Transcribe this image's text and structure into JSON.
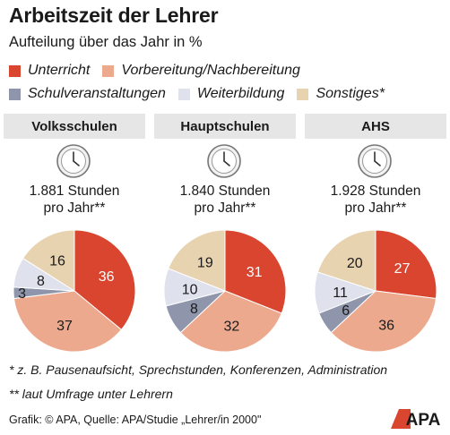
{
  "title": "Arbeitszeit der Lehrer",
  "subtitle": "Aufteilung über das Jahr in %",
  "legend": [
    {
      "label": "Unterricht",
      "color": "#d9452e"
    },
    {
      "label": "Vorbereitung/Nachbereitung",
      "color": "#eda98e"
    },
    {
      "label": "Schulveranstaltungen",
      "color": "#8f96ab"
    },
    {
      "label": "Weiterbildung",
      "color": "#dfe2ec"
    },
    {
      "label": "Sonstiges*",
      "color": "#e8d3b1"
    }
  ],
  "chart_data": [
    {
      "type": "pie",
      "title": "Volksschulen",
      "subtitle": "1.881 Stunden pro Jahr**",
      "hours_line1": "1.881 Stunden",
      "hours_line2": "pro Jahr**",
      "categories": [
        "Unterricht",
        "Vorbereitung/Nachbereitung",
        "Schulveranstaltungen",
        "Weiterbildung",
        "Sonstiges*"
      ],
      "values": [
        36,
        37,
        3,
        8,
        16
      ]
    },
    {
      "type": "pie",
      "title": "Hauptschulen",
      "subtitle": "1.840 Stunden pro Jahr**",
      "hours_line1": "1.840 Stunden",
      "hours_line2": "pro Jahr**",
      "categories": [
        "Unterricht",
        "Vorbereitung/Nachbereitung",
        "Schulveranstaltungen",
        "Weiterbildung",
        "Sonstiges*"
      ],
      "values": [
        31,
        32,
        8,
        10,
        19
      ]
    },
    {
      "type": "pie",
      "title": "AHS",
      "subtitle": "1.928 Stunden pro Jahr**",
      "hours_line1": "1.928 Stunden",
      "hours_line2": "pro Jahr**",
      "categories": [
        "Unterricht",
        "Vorbereitung/Nachbereitung",
        "Schulveranstaltungen",
        "Weiterbildung",
        "Sonstiges*"
      ],
      "values": [
        27,
        36,
        6,
        11,
        20
      ]
    }
  ],
  "notes": {
    "note1": "* z. B. Pausenaufsicht, Sprechstunden, Konferenzen, Administration",
    "note2": "** laut Umfrage unter Lehrern"
  },
  "source": "Grafik: © APA, Quelle: APA/Studie „Lehrer/in 2000\"",
  "logo_text": "APA",
  "icons": {
    "clock": "clock-icon",
    "logo": "apa-logo"
  }
}
